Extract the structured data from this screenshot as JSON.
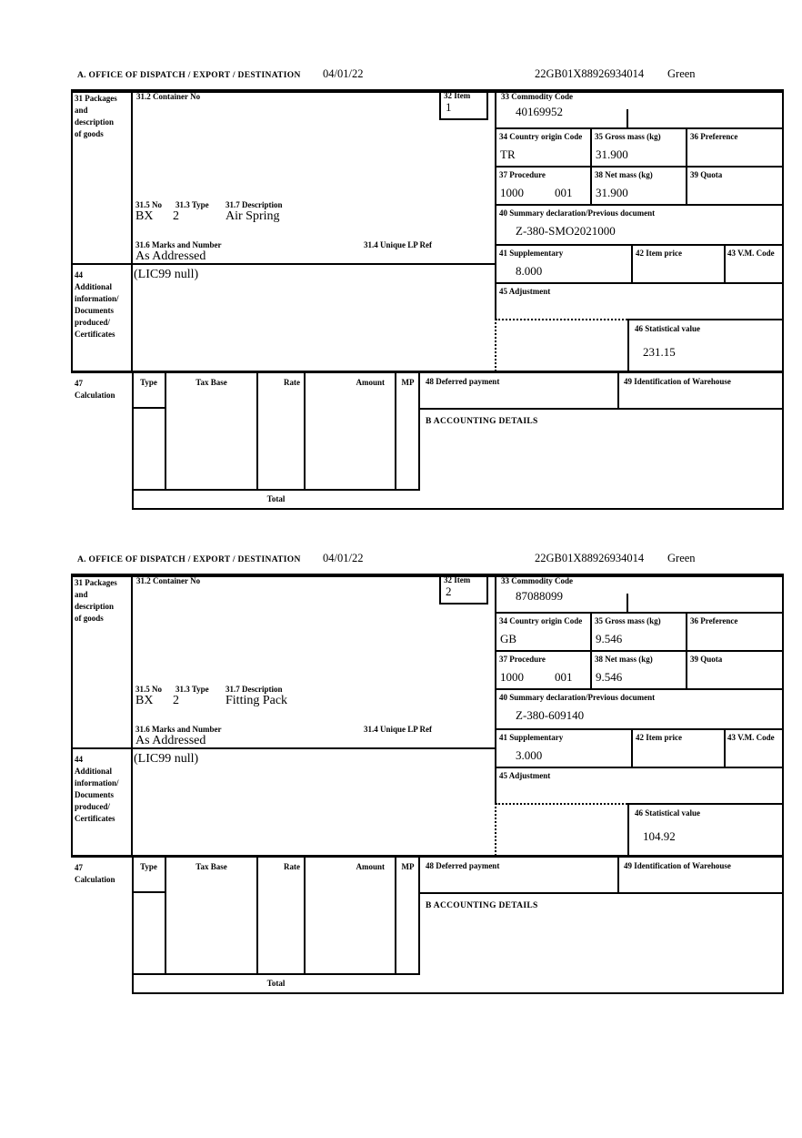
{
  "labels": {
    "section_a": "A. OFFICE OF DISPATCH / EXPORT / DESTINATION",
    "box31": "31 Packages\nand\ndescription\nof goods",
    "box31_2": "31.2 Container No",
    "box32": "32 Item",
    "box33": "33 Commodity Code",
    "box34": "34 Country origin Code",
    "box35": "35 Gross mass (kg)",
    "box36": "36 Preference",
    "box37": "37 Procedure",
    "box38": "38 Net mass (kg)",
    "box39": "39 Quota",
    "box40": "40 Summary declaration/Previous document",
    "box41": "41 Supplementary",
    "box42": "42 Item price",
    "box43": "43 V.M. Code",
    "box44": "44\nAdditional\ninformation/\nDocuments\nproduced/\nCertificates",
    "box45": "45 Adjustment",
    "box46": "46 Statistical value",
    "box47": "47\nCalculation",
    "box48": "48 Deferred payment",
    "box49": "49 Identification of Warehouse",
    "accounting": "B ACCOUNTING DETAILS",
    "box31_5": "31.5 No",
    "box31_3": "31.3 Type",
    "box31_7": "31.7 Description",
    "box31_6": "31.6 Marks and Number",
    "box31_4": "31.4 Unique LP Ref",
    "calc_type": "Type",
    "calc_tax_base": "Tax Base",
    "calc_rate": "Rate",
    "calc_amount": "Amount",
    "calc_mp": "MP",
    "calc_total": "Total"
  },
  "blocks": [
    {
      "date": "04/01/22",
      "mrn": "22GB01X88926934014",
      "routing": "Green",
      "item_no": "1",
      "commodity_code": "40169952",
      "country_origin": "TR",
      "gross_mass": "31.900",
      "procedure_1": "1000",
      "procedure_2": "001",
      "net_mass": "31.900",
      "summary_declaration": "Z-380-SMO2021000",
      "supplementary": "8.000",
      "package_no": "BX",
      "package_type": "2",
      "goods_description": "Air Spring",
      "marks_and_number": "As Addressed",
      "additional_information": "(LIC99 null)",
      "statistical_value": "231.15"
    },
    {
      "date": "04/01/22",
      "mrn": "22GB01X88926934014",
      "routing": "Green",
      "item_no": "2",
      "commodity_code": "87088099",
      "country_origin": "GB",
      "gross_mass": "9.546",
      "procedure_1": "1000",
      "procedure_2": "001",
      "net_mass": "9.546",
      "summary_declaration": "Z-380-609140",
      "supplementary": "3.000",
      "package_no": "BX",
      "package_type": "2",
      "goods_description": "Fitting Pack",
      "marks_and_number": "As Addressed",
      "additional_information": "(LIC99 null)",
      "statistical_value": "104.92"
    }
  ]
}
